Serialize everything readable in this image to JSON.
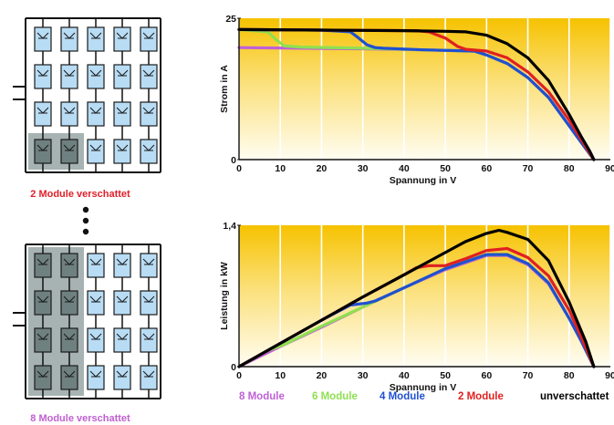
{
  "diagram": {
    "caption_top": "2 Module verschattet",
    "caption_bottom": "8 Module verschattet",
    "caption_color": "#e0202a",
    "caption_bottom_color": "#c060d0",
    "module_fill": "#b8dcf4",
    "shade_fill": "#8a9a9a",
    "top_array": {
      "rows": 4,
      "cols": 5,
      "shaded_rows": [
        3
      ],
      "shaded_cols": [
        0,
        1
      ]
    },
    "bottom_array": {
      "rows": 4,
      "cols": 5,
      "shaded_rows": [
        0,
        1,
        2,
        3
      ],
      "shaded_cols": [
        0,
        1
      ]
    }
  },
  "legend": [
    {
      "label": "8 Module",
      "color": "#c060d8"
    },
    {
      "label": "6 Module",
      "color": "#8ee050"
    },
    {
      "label": "4 Module",
      "color": "#2050d0"
    },
    {
      "label": "2 Module",
      "color": "#e02020"
    },
    {
      "label": "unverschattet",
      "color": "#000000"
    }
  ],
  "chart_data": [
    {
      "type": "line",
      "xlabel": "Spannung in V",
      "ylabel": "Strom in A",
      "xlim": [
        0,
        90
      ],
      "ylim": [
        0,
        25
      ],
      "xticks": [
        0,
        10,
        20,
        30,
        40,
        50,
        60,
        70,
        80,
        90
      ],
      "yticks": [
        0,
        25
      ],
      "grid": true,
      "series": [
        {
          "name": "unverschattet",
          "color": "#000000",
          "x": [
            0,
            20,
            40,
            50,
            55,
            60,
            65,
            70,
            75,
            80,
            83,
            85,
            86
          ],
          "y": [
            23,
            22.9,
            22.8,
            22.7,
            22.6,
            22,
            20.5,
            18,
            14,
            8,
            4,
            1.5,
            0
          ]
        },
        {
          "name": "2 Module",
          "color": "#e02020",
          "x": [
            0,
            20,
            43,
            46,
            50,
            53,
            55,
            60,
            65,
            70,
            75,
            80,
            83,
            86
          ],
          "y": [
            23,
            22.9,
            22.8,
            22.6,
            21.5,
            20,
            19.5,
            19.2,
            18,
            15.5,
            12,
            7,
            3.5,
            0
          ]
        },
        {
          "name": "4 Module",
          "color": "#2050d0",
          "x": [
            0,
            20,
            27,
            29,
            31,
            33,
            35,
            45,
            57,
            60,
            65,
            70,
            75,
            80,
            83,
            86
          ],
          "y": [
            23,
            22.9,
            22.6,
            21.5,
            20.3,
            19.8,
            19.7,
            19.4,
            19.2,
            18.5,
            17,
            14.5,
            11,
            6,
            3,
            0
          ]
        },
        {
          "name": "6 Module",
          "color": "#8ee050",
          "x": [
            0,
            7,
            9,
            11,
            15,
            30,
            45,
            57,
            60,
            65,
            70,
            75,
            80,
            83,
            86
          ],
          "y": [
            23,
            22.6,
            21.2,
            20.1,
            19.9,
            19.7,
            19.4,
            19.2,
            18.5,
            17,
            14.5,
            11,
            6,
            3,
            0
          ]
        },
        {
          "name": "8 Module",
          "color": "#c060d8",
          "x": [
            0,
            15,
            30,
            45,
            57,
            60,
            65,
            70,
            75,
            80,
            83,
            86
          ],
          "y": [
            19.8,
            19.7,
            19.6,
            19.4,
            19.2,
            18.5,
            17,
            14.5,
            11,
            6,
            3,
            0
          ]
        }
      ]
    },
    {
      "type": "line",
      "xlabel": "Spannung in V",
      "ylabel": "Leistung in kW",
      "xlim": [
        0,
        90
      ],
      "ylim": [
        0,
        1.4
      ],
      "xticks": [
        0,
        10,
        20,
        30,
        40,
        50,
        60,
        70,
        80,
        90
      ],
      "yticks": [
        0,
        1.4
      ],
      "grid": true,
      "series": [
        {
          "name": "unverschattet",
          "color": "#000000",
          "x": [
            0,
            10,
            20,
            30,
            40,
            45,
            50,
            55,
            60,
            63,
            65,
            70,
            75,
            80,
            84,
            86
          ],
          "y": [
            0,
            0.23,
            0.46,
            0.69,
            0.91,
            1.02,
            1.13,
            1.24,
            1.32,
            1.35,
            1.33,
            1.26,
            1.05,
            0.64,
            0.25,
            0
          ]
        },
        {
          "name": "2 Module",
          "color": "#e02020",
          "x": [
            0,
            10,
            20,
            30,
            40,
            43,
            46,
            50,
            55,
            60,
            65,
            70,
            75,
            80,
            83,
            86
          ],
          "y": [
            0,
            0.23,
            0.46,
            0.69,
            0.91,
            0.98,
            1.0,
            1.0,
            1.07,
            1.15,
            1.17,
            1.08,
            0.9,
            0.56,
            0.29,
            0
          ]
        },
        {
          "name": "4 Module",
          "color": "#2050d0",
          "x": [
            0,
            10,
            20,
            27,
            29,
            31,
            33,
            40,
            50,
            60,
            65,
            70,
            75,
            80,
            83,
            86
          ],
          "y": [
            0,
            0.23,
            0.46,
            0.61,
            0.62,
            0.63,
            0.65,
            0.78,
            0.97,
            1.11,
            1.11,
            1.02,
            0.83,
            0.48,
            0.25,
            0
          ]
        },
        {
          "name": "6 Module",
          "color": "#8ee050",
          "x": [
            0,
            7,
            9,
            11,
            20,
            30,
            40,
            50,
            60,
            65,
            70,
            75,
            80,
            83,
            86
          ],
          "y": [
            0,
            0.16,
            0.19,
            0.22,
            0.4,
            0.59,
            0.78,
            0.97,
            1.11,
            1.11,
            1.02,
            0.83,
            0.48,
            0.25,
            0
          ]
        },
        {
          "name": "8 Module",
          "color": "#c060d8",
          "x": [
            0,
            10,
            20,
            30,
            40,
            50,
            60,
            65,
            70,
            75,
            80,
            83,
            86
          ],
          "y": [
            0,
            0.2,
            0.39,
            0.59,
            0.78,
            0.96,
            1.1,
            1.1,
            1.01,
            0.82,
            0.48,
            0.25,
            0
          ]
        }
      ]
    }
  ]
}
